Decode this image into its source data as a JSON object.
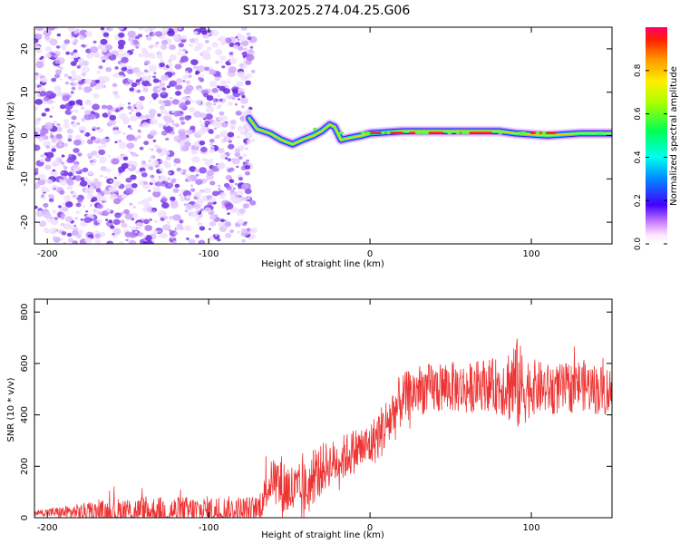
{
  "figure_title": "S173.2025.274.04.25.G06",
  "chart_data": [
    {
      "type": "heatmap",
      "name": "spectrogram",
      "xlabel": "Height of straight line (km)",
      "ylabel": "Frequency (Hz)",
      "xlim": [
        -208,
        150
      ],
      "ylim": [
        -25,
        25
      ],
      "xticks": [
        -200,
        -100,
        0,
        100
      ],
      "yticks": [
        -20,
        -10,
        0,
        10,
        20
      ],
      "noise_region_x": [
        -208,
        -72
      ],
      "trace": [
        {
          "x": -75,
          "y": 4
        },
        {
          "x": -70,
          "y": 1.5
        },
        {
          "x": -62,
          "y": 0.5
        },
        {
          "x": -55,
          "y": -1
        },
        {
          "x": -48,
          "y": -2
        },
        {
          "x": -42,
          "y": -1
        },
        {
          "x": -35,
          "y": 0
        },
        {
          "x": -30,
          "y": 1
        },
        {
          "x": -25,
          "y": 2.5
        },
        {
          "x": -22,
          "y": 2
        },
        {
          "x": -18,
          "y": -1
        },
        {
          "x": -12,
          "y": -0.5
        },
        {
          "x": -5,
          "y": 0
        },
        {
          "x": 0,
          "y": 0.5
        },
        {
          "x": 20,
          "y": 1
        },
        {
          "x": 50,
          "y": 1
        },
        {
          "x": 80,
          "y": 1
        },
        {
          "x": 90,
          "y": 0.5
        },
        {
          "x": 110,
          "y": 0
        },
        {
          "x": 130,
          "y": 0.5
        },
        {
          "x": 150,
          "y": 0.5
        }
      ],
      "colorbar": {
        "label": "Normalized spectral amplitude",
        "range": [
          0,
          1
        ],
        "ticks": [
          "0.0",
          "0.2",
          "0.4",
          "0.6",
          "0.8"
        ]
      }
    },
    {
      "type": "line",
      "name": "snr",
      "xlabel": "Height of straight line (km)",
      "ylabel": "SNR (10 * v/v)",
      "xlim": [
        -208,
        150
      ],
      "ylim": [
        0,
        850
      ],
      "xticks": [
        -200,
        -100,
        0,
        100
      ],
      "yticks": [
        0,
        200,
        400,
        600,
        800
      ],
      "color": "#ee3333",
      "series": [
        {
          "name": "SNR",
          "x": [
            -208,
            -150,
            -100,
            -70,
            -60,
            -55,
            -50,
            -45,
            -40,
            -35,
            -30,
            -25,
            -20,
            -15,
            -10,
            -5,
            0,
            5,
            10,
            15,
            20,
            30,
            40,
            50,
            60,
            70,
            80,
            85,
            90,
            95,
            100,
            110,
            120,
            130,
            140,
            150
          ],
          "y": [
            20,
            22,
            25,
            25,
            160,
            120,
            110,
            90,
            100,
            150,
            190,
            210,
            220,
            240,
            260,
            270,
            280,
            320,
            360,
            410,
            460,
            500,
            500,
            510,
            500,
            520,
            510,
            520,
            520,
            500,
            510,
            500,
            500,
            520,
            500,
            490
          ]
        }
      ],
      "series_noise": [
        10,
        60,
        60,
        60,
        80,
        130,
        110,
        120,
        120,
        100,
        100,
        90,
        90,
        90,
        90,
        90,
        90,
        100,
        110,
        120,
        100,
        100,
        100,
        100,
        100,
        100,
        110,
        140,
        200,
        150,
        110,
        100,
        100,
        100,
        100,
        100
      ]
    }
  ]
}
